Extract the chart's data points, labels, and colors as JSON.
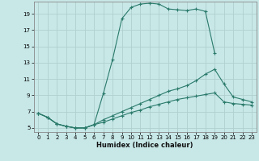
{
  "xlabel": "Humidex (Indice chaleur)",
  "background_color": "#c8e8e8",
  "grid_color": "#b0d0d0",
  "line_color": "#2a7a6a",
  "xlim": [
    -0.5,
    23.5
  ],
  "ylim": [
    4.5,
    20.5
  ],
  "xticks": [
    0,
    1,
    2,
    3,
    4,
    5,
    6,
    7,
    8,
    9,
    10,
    11,
    12,
    13,
    14,
    15,
    16,
    17,
    18,
    19,
    20,
    21,
    22,
    23
  ],
  "yticks": [
    5,
    7,
    9,
    11,
    13,
    15,
    17,
    19
  ],
  "series": [
    {
      "x": [
        0,
        1,
        2,
        3,
        4,
        5,
        6,
        7,
        8,
        9,
        10,
        11,
        12,
        13,
        14,
        15,
        16,
        17,
        18,
        19
      ],
      "y": [
        6.8,
        6.3,
        5.5,
        5.2,
        5.0,
        5.0,
        5.4,
        9.2,
        13.4,
        18.4,
        19.8,
        20.2,
        20.3,
        20.2,
        19.6,
        19.5,
        19.4,
        19.6,
        19.3,
        14.2
      ]
    },
    {
      "x": [
        0,
        1,
        2,
        3,
        4,
        5,
        6,
        7,
        8,
        9,
        10,
        11,
        12,
        13,
        14,
        15,
        16,
        17,
        18,
        19,
        20,
        21,
        22,
        23
      ],
      "y": [
        6.8,
        6.3,
        5.5,
        5.2,
        5.0,
        5.0,
        5.4,
        6.0,
        6.5,
        7.0,
        7.5,
        8.0,
        8.5,
        9.0,
        9.5,
        9.8,
        10.2,
        10.8,
        11.6,
        12.2,
        10.4,
        8.8,
        8.5,
        8.2
      ]
    },
    {
      "x": [
        0,
        1,
        2,
        3,
        4,
        5,
        6,
        7,
        8,
        9,
        10,
        11,
        12,
        13,
        14,
        15,
        16,
        17,
        18,
        19,
        20,
        21,
        22,
        23
      ],
      "y": [
        6.8,
        6.3,
        5.5,
        5.2,
        5.0,
        5.0,
        5.4,
        5.7,
        6.1,
        6.5,
        6.9,
        7.2,
        7.6,
        7.9,
        8.2,
        8.5,
        8.7,
        8.9,
        9.1,
        9.3,
        8.2,
        8.0,
        7.9,
        7.8
      ]
    }
  ]
}
